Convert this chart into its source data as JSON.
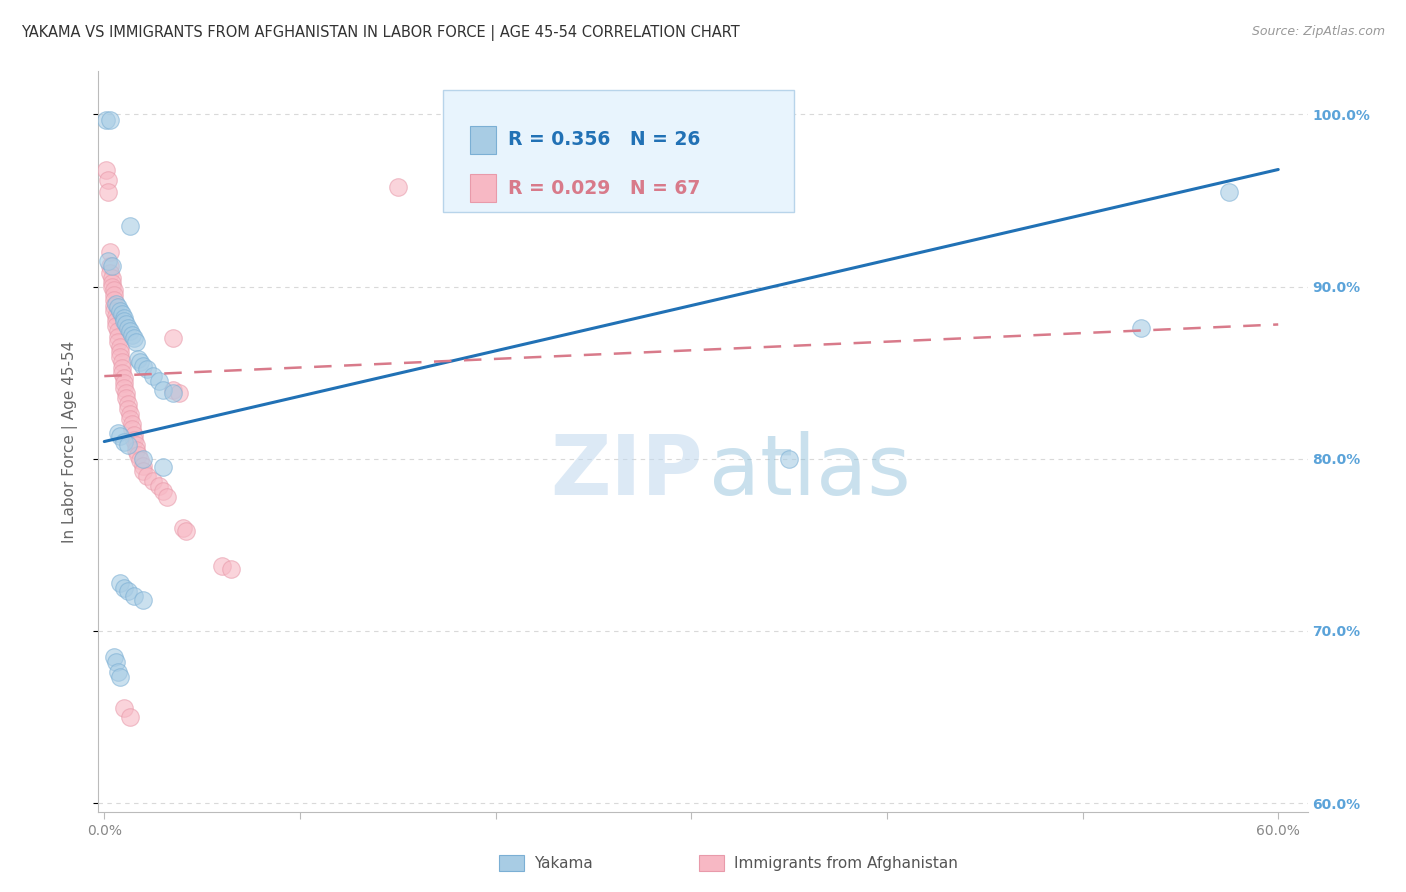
{
  "title": "YAKAMA VS IMMIGRANTS FROM AFGHANISTAN IN LABOR FORCE | AGE 45-54 CORRELATION CHART",
  "source": "Source: ZipAtlas.com",
  "ylabel": "In Labor Force | Age 45-54",
  "xlim": [
    -0.003,
    0.615
  ],
  "ylim": [
    0.595,
    1.025
  ],
  "xticks": [
    0.0,
    0.1,
    0.2,
    0.3,
    0.4,
    0.5,
    0.6
  ],
  "xticklabels": [
    "0.0%",
    "",
    "",
    "",
    "",
    "",
    "60.0%"
  ],
  "yticks_right": [
    1.0,
    0.9,
    0.8,
    0.7,
    0.6
  ],
  "yticklabels_right": [
    "100.0%",
    "90.0%",
    "80.0%",
    "70.0%",
    "60.0%"
  ],
  "blue_scatter": [
    [
      0.001,
      0.997
    ],
    [
      0.003,
      0.997
    ],
    [
      0.013,
      0.935
    ],
    [
      0.002,
      0.915
    ],
    [
      0.004,
      0.912
    ],
    [
      0.006,
      0.89
    ],
    [
      0.007,
      0.888
    ],
    [
      0.008,
      0.886
    ],
    [
      0.009,
      0.884
    ],
    [
      0.01,
      0.882
    ],
    [
      0.01,
      0.88
    ],
    [
      0.011,
      0.878
    ],
    [
      0.012,
      0.876
    ],
    [
      0.013,
      0.874
    ],
    [
      0.014,
      0.872
    ],
    [
      0.015,
      0.87
    ],
    [
      0.016,
      0.868
    ],
    [
      0.017,
      0.858
    ],
    [
      0.018,
      0.856
    ],
    [
      0.02,
      0.854
    ],
    [
      0.022,
      0.852
    ],
    [
      0.025,
      0.848
    ],
    [
      0.028,
      0.845
    ],
    [
      0.03,
      0.84
    ],
    [
      0.035,
      0.838
    ],
    [
      0.007,
      0.815
    ],
    [
      0.008,
      0.813
    ],
    [
      0.01,
      0.81
    ],
    [
      0.012,
      0.808
    ],
    [
      0.02,
      0.8
    ],
    [
      0.03,
      0.795
    ],
    [
      0.008,
      0.728
    ],
    [
      0.01,
      0.725
    ],
    [
      0.012,
      0.723
    ],
    [
      0.015,
      0.72
    ],
    [
      0.02,
      0.718
    ],
    [
      0.005,
      0.685
    ],
    [
      0.006,
      0.682
    ],
    [
      0.007,
      0.676
    ],
    [
      0.008,
      0.673
    ],
    [
      0.35,
      0.8
    ],
    [
      0.53,
      0.876
    ],
    [
      0.575,
      0.955
    ]
  ],
  "pink_scatter": [
    [
      0.001,
      0.968
    ],
    [
      0.002,
      0.962
    ],
    [
      0.002,
      0.955
    ],
    [
      0.003,
      0.92
    ],
    [
      0.003,
      0.912
    ],
    [
      0.003,
      0.908
    ],
    [
      0.004,
      0.905
    ],
    [
      0.004,
      0.902
    ],
    [
      0.004,
      0.9
    ],
    [
      0.005,
      0.898
    ],
    [
      0.005,
      0.895
    ],
    [
      0.005,
      0.892
    ],
    [
      0.005,
      0.889
    ],
    [
      0.005,
      0.886
    ],
    [
      0.006,
      0.883
    ],
    [
      0.006,
      0.88
    ],
    [
      0.006,
      0.877
    ],
    [
      0.007,
      0.874
    ],
    [
      0.007,
      0.871
    ],
    [
      0.007,
      0.868
    ],
    [
      0.008,
      0.865
    ],
    [
      0.008,
      0.862
    ],
    [
      0.008,
      0.859
    ],
    [
      0.009,
      0.856
    ],
    [
      0.009,
      0.853
    ],
    [
      0.009,
      0.85
    ],
    [
      0.01,
      0.847
    ],
    [
      0.01,
      0.844
    ],
    [
      0.01,
      0.841
    ],
    [
      0.011,
      0.838
    ],
    [
      0.011,
      0.835
    ],
    [
      0.012,
      0.832
    ],
    [
      0.012,
      0.829
    ],
    [
      0.013,
      0.826
    ],
    [
      0.013,
      0.823
    ],
    [
      0.014,
      0.82
    ],
    [
      0.014,
      0.817
    ],
    [
      0.015,
      0.814
    ],
    [
      0.015,
      0.811
    ],
    [
      0.016,
      0.808
    ],
    [
      0.016,
      0.805
    ],
    [
      0.017,
      0.802
    ],
    [
      0.018,
      0.799
    ],
    [
      0.02,
      0.796
    ],
    [
      0.02,
      0.793
    ],
    [
      0.022,
      0.79
    ],
    [
      0.025,
      0.787
    ],
    [
      0.028,
      0.784
    ],
    [
      0.03,
      0.781
    ],
    [
      0.032,
      0.778
    ],
    [
      0.035,
      0.84
    ],
    [
      0.038,
      0.838
    ],
    [
      0.04,
      0.76
    ],
    [
      0.042,
      0.758
    ],
    [
      0.06,
      0.738
    ],
    [
      0.065,
      0.736
    ],
    [
      0.035,
      0.87
    ],
    [
      0.15,
      0.958
    ],
    [
      0.01,
      0.655
    ],
    [
      0.013,
      0.65
    ]
  ],
  "blue_line_x": [
    0.0,
    0.6
  ],
  "blue_line_y": [
    0.81,
    0.968
  ],
  "pink_line_x": [
    0.0,
    0.6
  ],
  "pink_line_y": [
    0.848,
    0.878
  ],
  "blue_dot_color": "#a8cce4",
  "blue_dot_edge": "#7bafd4",
  "pink_dot_color": "#f7b8c4",
  "pink_dot_edge": "#e89aaa",
  "blue_line_color": "#2171b5",
  "pink_line_color": "#d87a8a",
  "grid_color": "#d9d9d9",
  "watermark_zip": "ZIP",
  "watermark_atlas": "atlas",
  "watermark_zip_color": "#c0d8ee",
  "watermark_atlas_color": "#88bcd8",
  "legend_bg_color": "#e8f4fd",
  "legend_border_color": "#b8d4ea",
  "right_tick_color": "#5ba3d9",
  "title_color": "#333333",
  "source_color": "#999999",
  "axis_label_color": "#666666",
  "tick_color": "#888888"
}
